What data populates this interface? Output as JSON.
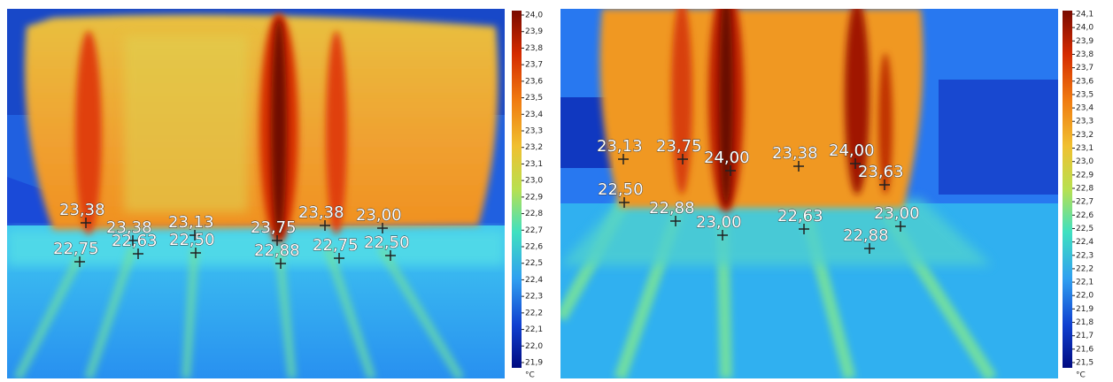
{
  "panels": [
    {
      "colorbar": {
        "ticks": [
          "24,0",
          "23,9",
          "23,8",
          "23,7",
          "23,6",
          "23,5",
          "23,4",
          "23,3",
          "23,2",
          "23,1",
          "23,0",
          "22,9",
          "22,8",
          "22,7",
          "22,6",
          "22,5",
          "22,4",
          "22,3",
          "22,2",
          "22,1",
          "22,0",
          "21,9"
        ],
        "unit": "°C"
      },
      "points": [
        "23,38",
        "23,38",
        "23,13",
        "23,75",
        "23,38",
        "23,00",
        "22,75",
        "22,63",
        "22,50",
        "22,88",
        "22,75",
        "22,50"
      ]
    },
    {
      "colorbar": {
        "ticks": [
          "24,1",
          "24,0",
          "23,9",
          "23,8",
          "23,7",
          "23,6",
          "23,5",
          "23,4",
          "23,3",
          "23,2",
          "23,1",
          "23,0",
          "22,9",
          "22,8",
          "22,7",
          "22,6",
          "22,5",
          "22,4",
          "22,3",
          "22,2",
          "22,1",
          "22,0",
          "21,9",
          "21,8",
          "21,7",
          "21,6",
          "21,5"
        ],
        "unit": "°C"
      },
      "points": [
        "23,13",
        "23,75",
        "24,00",
        "23,38",
        "24,00",
        "23,63",
        "22,50",
        "22,88",
        "23,00",
        "22,63",
        "23,00",
        "22,88"
      ]
    }
  ]
}
